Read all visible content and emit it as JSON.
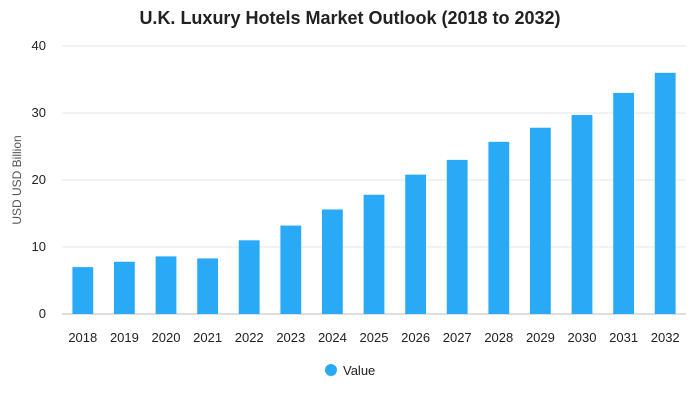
{
  "chart_data": {
    "type": "bar",
    "title": "U.K. Luxury Hotels Market Outlook (2018 to 2032)",
    "xlabel": "",
    "ylabel": "USD USD Billion",
    "ylim": [
      0,
      40
    ],
    "yticks": [
      0,
      10,
      20,
      30,
      40
    ],
    "grid": true,
    "legend_position": "bottom",
    "categories": [
      "2018",
      "2019",
      "2020",
      "2021",
      "2022",
      "2023",
      "2024",
      "2025",
      "2026",
      "2027",
      "2028",
      "2029",
      "2030",
      "2031",
      "2032"
    ],
    "series": [
      {
        "name": "Value",
        "color": "#2aaaf6",
        "values": [
          7.0,
          7.8,
          8.6,
          8.3,
          11.0,
          13.2,
          15.6,
          17.8,
          20.8,
          23.0,
          25.7,
          27.8,
          29.7,
          33.0,
          36.0
        ]
      }
    ]
  }
}
